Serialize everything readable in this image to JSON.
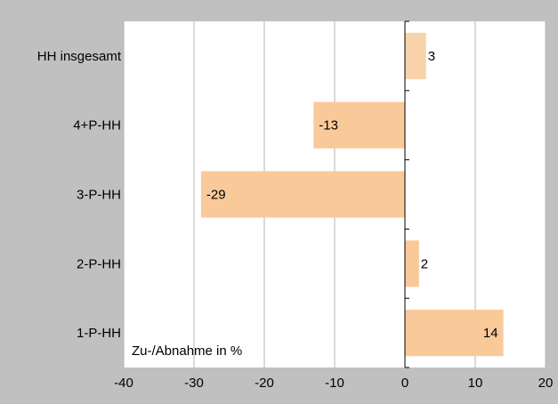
{
  "chart_data": {
    "type": "bar",
    "orientation": "horizontal",
    "categories": [
      "HH insgesamt",
      "4+P-HH",
      "3-P-HH",
      "2-P-HH",
      "1-P-HH"
    ],
    "values": [
      3,
      -13,
      -29,
      2,
      14
    ],
    "xlim": [
      -40,
      20
    ],
    "xticks": [
      -40,
      -30,
      -20,
      -10,
      0,
      10,
      20
    ],
    "grid": "vertical",
    "annotation": "Zu-/Abnahme in %",
    "colors": {
      "background": "#c0c0c0",
      "plot_area": "#ffffff",
      "bar_fill": "#f9c99a",
      "bar_fill_total": "#f6d3aa",
      "gridline": "#b4b4b4",
      "axis": "#000000"
    }
  }
}
